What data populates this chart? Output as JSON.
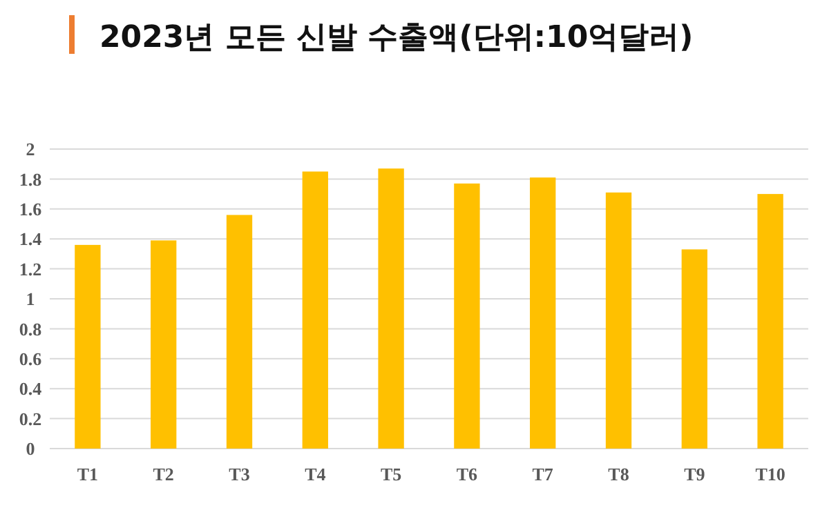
{
  "chart_data": {
    "type": "bar",
    "title": "2023년 모든 신발 수출액(단위:10억달러)",
    "categories": [
      "T1",
      "T2",
      "T3",
      "T4",
      "T5",
      "T6",
      "T7",
      "T8",
      "T9",
      "T10"
    ],
    "values": [
      1.36,
      1.39,
      1.56,
      1.85,
      1.87,
      1.77,
      1.81,
      1.71,
      1.33,
      1.7
    ],
    "color": "#ffc000",
    "ylim": [
      0,
      2
    ],
    "yticks": [
      0,
      {
        "value": 0.2,
        "label": "0.2"
      },
      {
        "value": 0.4,
        "label": "0.4"
      },
      {
        "value": 0.6,
        "label": "0.6"
      },
      {
        "value": 0.8,
        "label": "0.8"
      },
      1,
      {
        "value": 1.2,
        "label": "1.2"
      },
      {
        "value": 1.4,
        "label": "1.4"
      },
      {
        "value": 1.6,
        "label": "1.6"
      },
      {
        "value": 1.8,
        "label": "1.8"
      },
      2
    ],
    "grid": true
  }
}
